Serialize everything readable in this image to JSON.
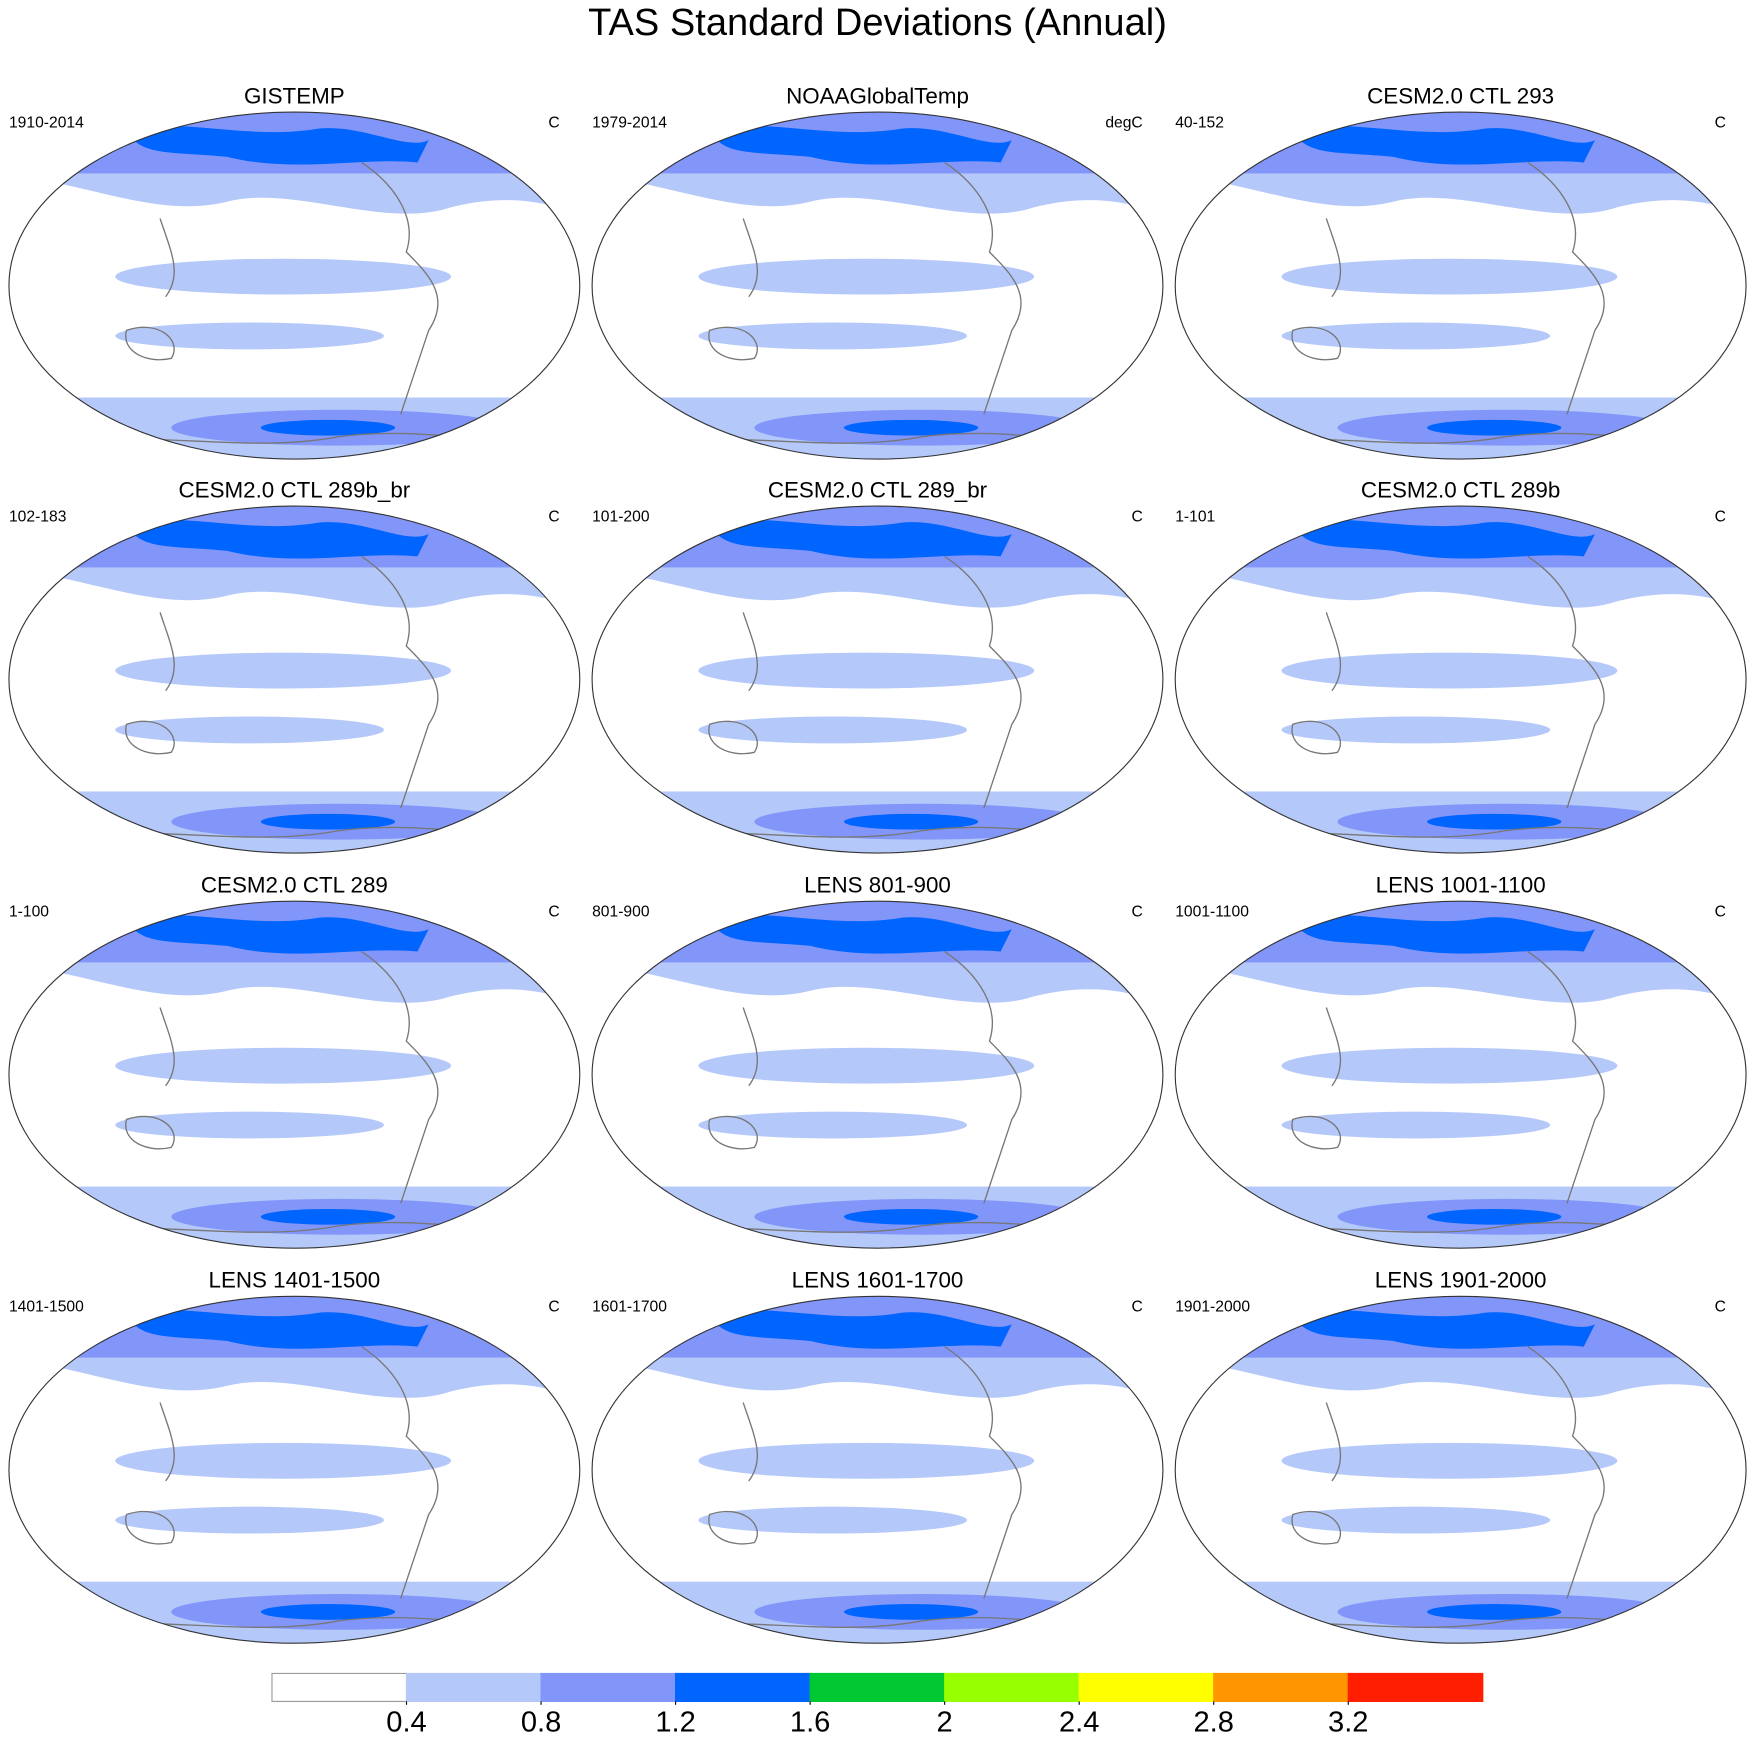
{
  "title": "TAS Standard Deviations (Annual)",
  "panels": [
    {
      "title": "GISTEMP",
      "left": "1910-2014",
      "right": "C"
    },
    {
      "title": "NOAAGlobalTemp",
      "left": "1979-2014",
      "right": "degC"
    },
    {
      "title": "CESM2.0 CTL 293",
      "left": "40-152",
      "right": "C"
    },
    {
      "title": "CESM2.0 CTL 289b_br",
      "left": "102-183",
      "right": "C"
    },
    {
      "title": "CESM2.0 CTL 289_br",
      "left": "101-200",
      "right": "C"
    },
    {
      "title": "CESM2.0 CTL 289b",
      "left": "1-101",
      "right": "C"
    },
    {
      "title": "CESM2.0 CTL 289",
      "left": "1-100",
      "right": "C"
    },
    {
      "title": "LENS 801-900",
      "left": "801-900",
      "right": "C"
    },
    {
      "title": "LENS 1001-1100",
      "left": "1001-1100",
      "right": "C"
    },
    {
      "title": "LENS 1401-1500",
      "left": "1401-1500",
      "right": "C"
    },
    {
      "title": "LENS 1601-1700",
      "left": "1601-1700",
      "right": "C"
    },
    {
      "title": "LENS 1901-2000",
      "left": "1901-2000",
      "right": "C"
    }
  ],
  "colorbar": {
    "colors": [
      "#ffffff",
      "#b4c8fa",
      "#8296fa",
      "#0064ff",
      "#00c832",
      "#96ff00",
      "#ffff00",
      "#ff9600",
      "#ff1e00"
    ],
    "ticks": [
      0.4,
      0.8,
      1.2,
      1.6,
      2,
      2.4,
      2.8,
      3.2
    ]
  }
}
